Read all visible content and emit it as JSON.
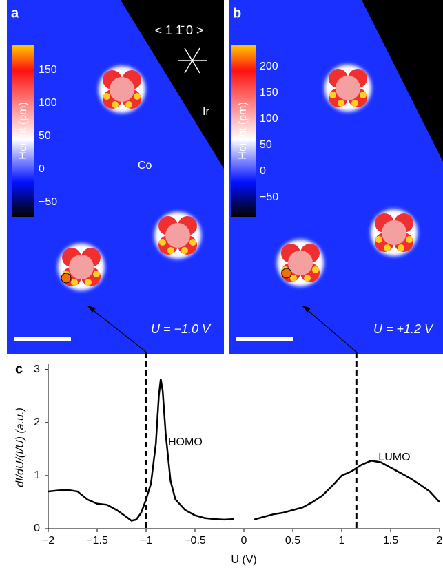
{
  "panels": [
    {
      "label": "a",
      "orientation": "< 1 1̄ 0 >",
      "region_ir": "Ir",
      "region_co": "Co",
      "bias": "U = −1.0 V",
      "colorbar_title": "Height (pm)",
      "colorbar_lim": [
        -72,
        188
      ],
      "colorbar_ticks": [
        {
          "value": 150,
          "label": "150"
        },
        {
          "value": 100,
          "label": "100"
        },
        {
          "value": 50,
          "label": "50"
        },
        {
          "value": 0,
          "label": "0"
        },
        {
          "value": -50,
          "label": "−50"
        }
      ]
    },
    {
      "label": "b",
      "bias": "U = +1.2 V",
      "colorbar_title": "Height (pm)",
      "colorbar_lim": [
        -87,
        242
      ],
      "colorbar_ticks": [
        {
          "value": 200,
          "label": "200"
        },
        {
          "value": 150,
          "label": "150"
        },
        {
          "value": 100,
          "label": "100"
        },
        {
          "value": 50,
          "label": "50"
        },
        {
          "value": 0,
          "label": "0"
        },
        {
          "value": -50,
          "label": "−50"
        }
      ]
    }
  ],
  "chart_data": {
    "type": "line",
    "panel_label": "c",
    "x_label": "U (V)",
    "y_label": "dI/dU/(I/U) (a.u.)",
    "x": [
      -2,
      -1.9,
      -1.8,
      -1.7,
      -1.6,
      -1.5,
      -1.4,
      -1.3,
      -1.2,
      -1.15,
      -1.1,
      -1.05,
      -1.0,
      -0.95,
      -0.9,
      -0.87,
      -0.85,
      -0.83,
      -0.8,
      -0.75,
      -0.7,
      -0.6,
      -0.5,
      -0.4,
      -0.3,
      -0.2,
      -0.1,
      0,
      0.1,
      0.2,
      0.3,
      0.4,
      0.5,
      0.6,
      0.7,
      0.8,
      0.9,
      1.0,
      1.1,
      1.2,
      1.3,
      1.4,
      1.5,
      1.6,
      1.7,
      1.8,
      1.9,
      2.0
    ],
    "series": [
      {
        "color": "#000000",
        "values": [
          0.7,
          0.72,
          0.73,
          0.7,
          0.55,
          0.47,
          0.45,
          0.35,
          0.22,
          0.15,
          0.17,
          0.3,
          0.55,
          0.85,
          1.6,
          2.5,
          2.82,
          2.6,
          1.8,
          0.9,
          0.55,
          0.35,
          0.25,
          0.2,
          0.18,
          0.17,
          0.18,
          null,
          0.17,
          0.22,
          0.27,
          0.3,
          0.35,
          0.4,
          0.5,
          0.62,
          0.8,
          1.0,
          1.08,
          1.2,
          1.28,
          1.25,
          1.15,
          1.05,
          0.95,
          0.83,
          0.7,
          0.5
        ]
      }
    ],
    "xlim": [
      -2,
      2
    ],
    "ylim": [
      0,
      3.1
    ],
    "xticks": [
      {
        "value": -2,
        "label": "−2"
      },
      {
        "value": -1.5,
        "label": "−1.5"
      },
      {
        "value": -1,
        "label": "−1"
      },
      {
        "value": -0.5,
        "label": "−0.5"
      },
      0,
      0.5,
      1,
      1.5,
      2
    ],
    "yticks": [
      0,
      1,
      2,
      3
    ],
    "markers": [
      {
        "x": -1,
        "label": "HOMO"
      },
      {
        "x": 1.15,
        "label": "LUMO"
      }
    ]
  }
}
